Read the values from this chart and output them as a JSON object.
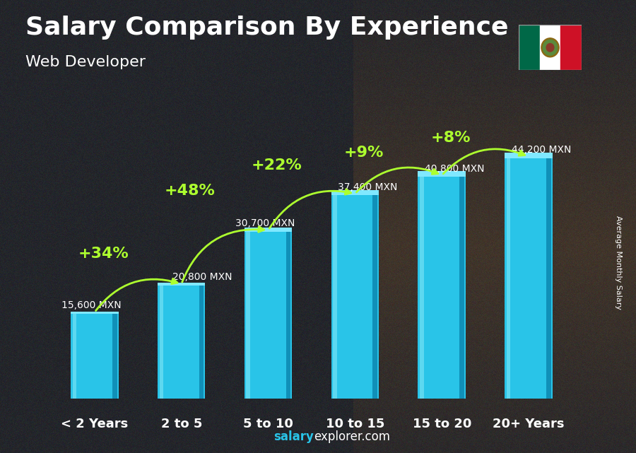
{
  "title": "Salary Comparison By Experience",
  "subtitle": "Web Developer",
  "ylabel": "Average Monthly Salary",
  "watermark_bold": "salary",
  "watermark_normal": "explorer.com",
  "categories": [
    "< 2 Years",
    "2 to 5",
    "5 to 10",
    "10 to 15",
    "15 to 20",
    "20+ Years"
  ],
  "values": [
    15600,
    20800,
    30700,
    37400,
    40800,
    44200
  ],
  "value_labels": [
    "15,600 MXN",
    "20,800 MXN",
    "30,700 MXN",
    "37,400 MXN",
    "40,800 MXN",
    "44,200 MXN"
  ],
  "pct_changes": [
    "+34%",
    "+48%",
    "+22%",
    "+9%",
    "+8%"
  ],
  "bar_color_main": "#29C4E8",
  "bar_color_left": "#5DD8F0",
  "bar_color_right": "#1090B8",
  "bar_color_top": "#80E8FF",
  "bg_color": "#2a2a2a",
  "title_color": "#FFFFFF",
  "value_label_color": "#FFFFFF",
  "pct_color": "#ADFF2F",
  "xticklabel_color": "#FFFFFF",
  "arrow_color": "#ADFF2F",
  "watermark_color_bold": "#29C4E8",
  "watermark_color_normal": "#FFFFFF",
  "title_fontsize": 26,
  "subtitle_fontsize": 16,
  "value_label_fontsize": 10,
  "pct_fontsize": 16,
  "xticklabel_fontsize": 13,
  "watermark_fontsize": 12,
  "ylabel_fontsize": 8,
  "ylim_max": 50000,
  "bar_width": 0.55
}
